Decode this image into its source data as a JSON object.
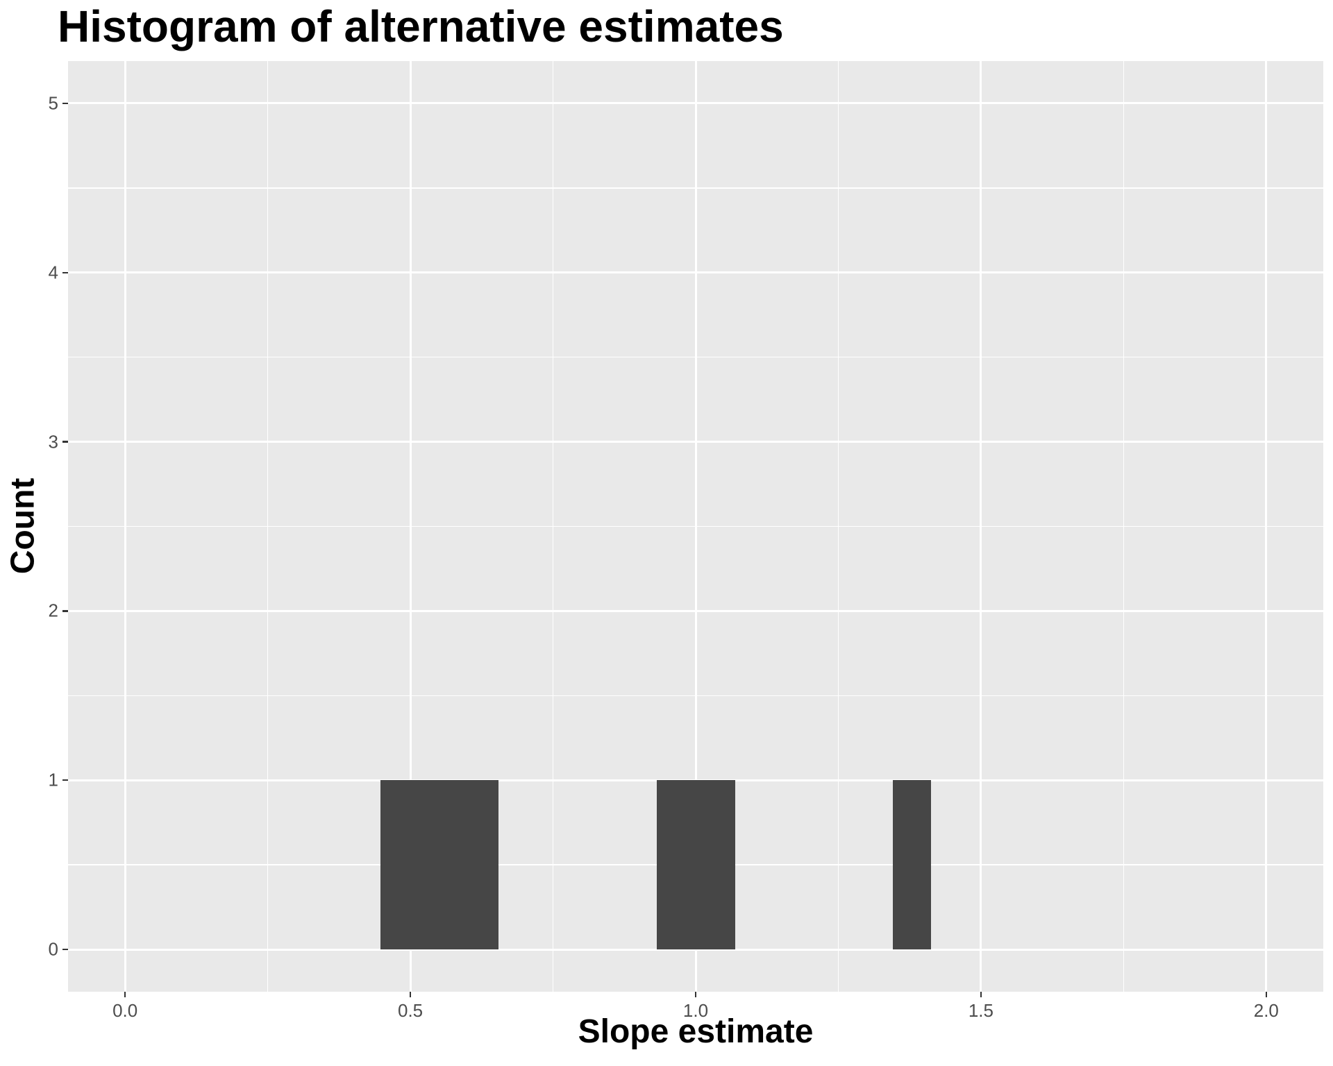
{
  "chart_data": {
    "type": "bar",
    "subtype": "histogram",
    "title": "Histogram of alternative estimates",
    "xlabel": "Slope estimate",
    "ylabel": "Count",
    "xlim": [
      -0.1,
      2.1
    ],
    "ylim": [
      -0.25,
      5.25
    ],
    "x_major_ticks": [
      0.0,
      0.5,
      1.0,
      1.5,
      2.0
    ],
    "x_tick_labels": [
      "0.0",
      "0.5",
      "1.0",
      "1.5",
      "2.0"
    ],
    "x_minor_ticks": [
      0.25,
      0.75,
      1.25,
      1.75
    ],
    "y_major_ticks": [
      0,
      1,
      2,
      3,
      4,
      5
    ],
    "y_tick_labels": [
      "0",
      "1",
      "2",
      "3",
      "4",
      "5"
    ],
    "y_minor_ticks": [
      0.5,
      1.5,
      2.5,
      3.5,
      4.5
    ],
    "grid": "major-and-minor-white-on-grey-panel",
    "legend": "none",
    "baseline": 0,
    "bin_width_approx": 0.069,
    "bars": [
      {
        "x_from": 0.448,
        "x_to": 0.655,
        "count": 1
      },
      {
        "x_from": 0.932,
        "x_to": 1.069,
        "count": 1
      },
      {
        "x_from": 1.345,
        "x_to": 1.413,
        "count": 1
      }
    ]
  },
  "style": {
    "panel_bg": "#E9E9E9",
    "grid_color": "#FFFFFF",
    "bar_fill": "#464646",
    "axis_text_color": "#4D4D4D",
    "tick_mark_color": "#333333",
    "text_color": "#000000",
    "page_bg": "#FFFFFF"
  }
}
